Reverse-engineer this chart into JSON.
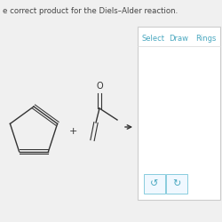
{
  "title_text": "e correct product for the Diels–Alder reaction.",
  "title_color": "#444444",
  "title_fontsize": 6.2,
  "bg_color": "#f0f0f0",
  "panel_bg": "#ffffff",
  "panel_border": "#cccccc",
  "tab_labels": [
    "Select",
    "Draw",
    "Rings"
  ],
  "tab_color": "#4aa8c0",
  "tab_fontsize": 6.0,
  "line_color": "#333333",
  "line_width": 1.0
}
